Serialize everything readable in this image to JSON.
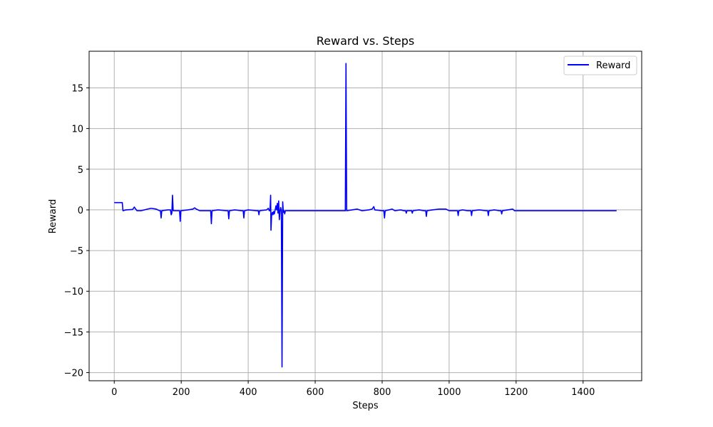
{
  "chart_data": {
    "type": "line",
    "title": "Reward vs. Steps",
    "xlabel": "Steps",
    "ylabel": "Reward",
    "xlim": [
      -75,
      1575
    ],
    "ylim": [
      -21,
      19.5
    ],
    "xticks": [
      0,
      200,
      400,
      600,
      800,
      1000,
      1200,
      1400
    ],
    "yticks": [
      -20,
      -15,
      -10,
      -5,
      0,
      5,
      10,
      15
    ],
    "grid": true,
    "legend_position": "top-right",
    "series": [
      {
        "name": "Reward",
        "color": "#0000ff",
        "points": [
          [
            0,
            0.9
          ],
          [
            24,
            0.9
          ],
          [
            26,
            -0.1
          ],
          [
            35,
            0.0
          ],
          [
            55,
            0.05
          ],
          [
            60,
            0.35
          ],
          [
            64,
            0.1
          ],
          [
            68,
            -0.1
          ],
          [
            80,
            -0.1
          ],
          [
            100,
            0.1
          ],
          [
            110,
            0.2
          ],
          [
            125,
            0.1
          ],
          [
            135,
            -0.1
          ],
          [
            138,
            -0.1
          ],
          [
            140,
            -1.0
          ],
          [
            142,
            -0.1
          ],
          [
            160,
            0.0
          ],
          [
            168,
            0.0
          ],
          [
            170,
            -0.6
          ],
          [
            172,
            -0.4
          ],
          [
            174,
            1.8
          ],
          [
            176,
            -0.1
          ],
          [
            195,
            -0.1
          ],
          [
            197,
            -1.4
          ],
          [
            199,
            -0.1
          ],
          [
            220,
            0.0
          ],
          [
            235,
            0.1
          ],
          [
            240,
            0.25
          ],
          [
            245,
            0.1
          ],
          [
            255,
            -0.1
          ],
          [
            288,
            -0.1
          ],
          [
            290,
            -1.7
          ],
          [
            292,
            -0.1
          ],
          [
            310,
            0.0
          ],
          [
            335,
            -0.1
          ],
          [
            340,
            -0.1
          ],
          [
            342,
            -1.1
          ],
          [
            344,
            -0.1
          ],
          [
            360,
            0.0
          ],
          [
            380,
            -0.1
          ],
          [
            385,
            -0.1
          ],
          [
            387,
            -1.0
          ],
          [
            389,
            -0.1
          ],
          [
            400,
            0.0
          ],
          [
            425,
            -0.1
          ],
          [
            430,
            -0.1
          ],
          [
            432,
            -0.6
          ],
          [
            434,
            -0.1
          ],
          [
            455,
            0.0
          ],
          [
            460,
            0.2
          ],
          [
            463,
            -0.1
          ],
          [
            465,
            -0.1
          ],
          [
            467,
            1.8
          ],
          [
            468,
            -2.5
          ],
          [
            470,
            -0.6
          ],
          [
            472,
            -0.3
          ],
          [
            474,
            -0.6
          ],
          [
            476,
            -0.2
          ],
          [
            478,
            -0.5
          ],
          [
            480,
            -0.1
          ],
          [
            483,
            0.5
          ],
          [
            485,
            0.0
          ],
          [
            487,
            0.8
          ],
          [
            489,
            -0.4
          ],
          [
            491,
            1.1
          ],
          [
            493,
            -1.2
          ],
          [
            495,
            -0.2
          ],
          [
            497,
            0.3
          ],
          [
            499,
            -0.1
          ],
          [
            501,
            -19.3
          ],
          [
            503,
            1.0
          ],
          [
            505,
            -0.3
          ],
          [
            507,
            -0.1
          ],
          [
            509,
            -0.5
          ],
          [
            511,
            -0.1
          ],
          [
            530,
            -0.1
          ],
          [
            600,
            -0.1
          ],
          [
            690,
            -0.1
          ],
          [
            692,
            18.0
          ],
          [
            694,
            -0.1
          ],
          [
            710,
            0.0
          ],
          [
            725,
            0.1
          ],
          [
            740,
            -0.1
          ],
          [
            760,
            0.0
          ],
          [
            770,
            0.1
          ],
          [
            775,
            0.4
          ],
          [
            778,
            0.0
          ],
          [
            800,
            -0.1
          ],
          [
            805,
            -0.1
          ],
          [
            807,
            -1.0
          ],
          [
            809,
            -0.1
          ],
          [
            820,
            0.0
          ],
          [
            830,
            0.1
          ],
          [
            838,
            -0.1
          ],
          [
            855,
            0.0
          ],
          [
            865,
            -0.1
          ],
          [
            870,
            -0.1
          ],
          [
            872,
            -0.4
          ],
          [
            874,
            -0.1
          ],
          [
            888,
            -0.1
          ],
          [
            890,
            -0.4
          ],
          [
            892,
            -0.1
          ],
          [
            910,
            0.0
          ],
          [
            925,
            -0.1
          ],
          [
            930,
            -0.1
          ],
          [
            932,
            -0.8
          ],
          [
            934,
            -0.1
          ],
          [
            950,
            0.0
          ],
          [
            970,
            0.1
          ],
          [
            990,
            0.1
          ],
          [
            1000,
            -0.1
          ],
          [
            1025,
            -0.1
          ],
          [
            1027,
            -0.7
          ],
          [
            1029,
            -0.1
          ],
          [
            1040,
            0.0
          ],
          [
            1055,
            -0.1
          ],
          [
            1065,
            -0.1
          ],
          [
            1067,
            -0.7
          ],
          [
            1069,
            -0.1
          ],
          [
            1090,
            0.0
          ],
          [
            1110,
            -0.1
          ],
          [
            1115,
            -0.1
          ],
          [
            1117,
            -0.7
          ],
          [
            1119,
            -0.1
          ],
          [
            1135,
            0.0
          ],
          [
            1150,
            -0.1
          ],
          [
            1155,
            -0.1
          ],
          [
            1157,
            -0.5
          ],
          [
            1159,
            -0.1
          ],
          [
            1175,
            0.0
          ],
          [
            1190,
            0.1
          ],
          [
            1195,
            -0.1
          ],
          [
            1500,
            -0.1
          ]
        ]
      }
    ]
  }
}
